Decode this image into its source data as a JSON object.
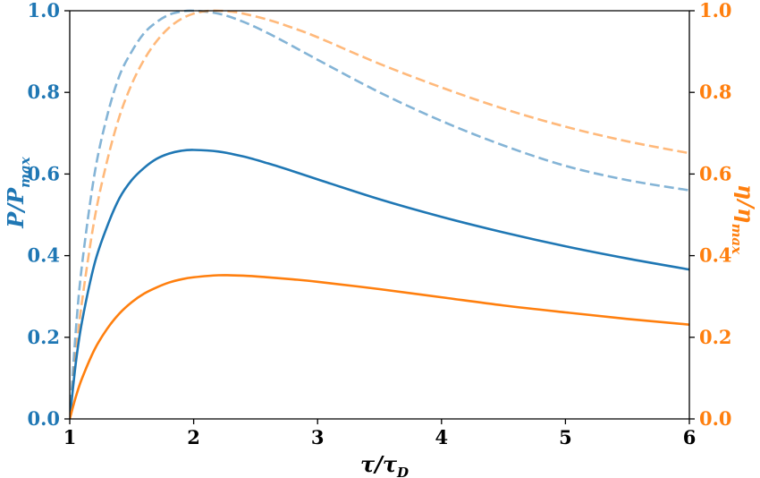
{
  "chart_data": {
    "type": "line",
    "xlabel": {
      "main": "τ/τ",
      "sub": "D"
    },
    "ylabel_left": {
      "main": "P/P",
      "sub": "max"
    },
    "ylabel_right": {
      "main": "η/η",
      "sub": "max"
    },
    "xlim": [
      1,
      6
    ],
    "ylim_left": [
      0,
      1.0
    ],
    "ylim_right": [
      0,
      1.0
    ],
    "x_ticks": [
      "1",
      "2",
      "3",
      "4",
      "5",
      "6"
    ],
    "y_ticks_left": [
      "0.0",
      "0.2",
      "0.4",
      "0.6",
      "0.8",
      "1.0"
    ],
    "y_ticks_right": [
      "0.0",
      "0.2",
      "0.4",
      "0.6",
      "0.8",
      "1.0"
    ],
    "grid": false,
    "colors": {
      "blue": "#1f77b4",
      "orange": "#ff7f0e",
      "axis": "#000000"
    },
    "series": [
      {
        "axis": "left",
        "color": "#1f77b4",
        "style": "solid",
        "opacity": 1.0,
        "x": [
          1.0,
          1.05,
          1.1,
          1.2,
          1.3,
          1.4,
          1.5,
          1.6,
          1.7,
          1.8,
          1.9,
          2.0,
          2.2,
          2.4,
          2.6,
          2.8,
          3.0,
          3.5,
          4.0,
          4.5,
          5.0,
          5.5,
          6.0
        ],
        "y": [
          0.0,
          0.14,
          0.24,
          0.38,
          0.47,
          0.54,
          0.585,
          0.615,
          0.637,
          0.65,
          0.657,
          0.659,
          0.655,
          0.643,
          0.626,
          0.607,
          0.587,
          0.538,
          0.495,
          0.457,
          0.423,
          0.393,
          0.366
        ]
      },
      {
        "axis": "right",
        "color": "#ff7f0e",
        "style": "solid",
        "opacity": 1.0,
        "x": [
          1.0,
          1.05,
          1.1,
          1.2,
          1.3,
          1.4,
          1.5,
          1.6,
          1.7,
          1.8,
          1.9,
          2.0,
          2.2,
          2.4,
          2.6,
          2.8,
          3.0,
          3.5,
          4.0,
          4.5,
          5.0,
          5.5,
          6.0
        ],
        "y": [
          0.0,
          0.055,
          0.1,
          0.17,
          0.22,
          0.258,
          0.286,
          0.307,
          0.322,
          0.334,
          0.342,
          0.347,
          0.352,
          0.351,
          0.347,
          0.342,
          0.336,
          0.318,
          0.298,
          0.278,
          0.261,
          0.245,
          0.231
        ]
      },
      {
        "axis": "left",
        "color": "#1f77b4",
        "style": "dashed",
        "opacity": 0.55,
        "x": [
          1.0,
          1.05,
          1.1,
          1.2,
          1.3,
          1.4,
          1.5,
          1.6,
          1.7,
          1.8,
          1.9,
          2.0,
          2.2,
          2.4,
          2.6,
          2.8,
          3.0,
          3.5,
          4.0,
          4.5,
          5.0,
          5.5,
          6.0
        ],
        "y": [
          0.0,
          0.22,
          0.38,
          0.6,
          0.74,
          0.84,
          0.9,
          0.945,
          0.972,
          0.99,
          0.998,
          1.0,
          0.993,
          0.973,
          0.945,
          0.913,
          0.88,
          0.8,
          0.73,
          0.67,
          0.62,
          0.585,
          0.56
        ]
      },
      {
        "axis": "right",
        "color": "#ff7f0e",
        "style": "dashed",
        "opacity": 0.55,
        "x": [
          1.0,
          1.05,
          1.1,
          1.2,
          1.3,
          1.4,
          1.5,
          1.6,
          1.7,
          1.8,
          1.9,
          2.0,
          2.1,
          2.2,
          2.3,
          2.4,
          2.6,
          2.8,
          3.0,
          3.5,
          4.0,
          4.5,
          5.0,
          5.5,
          6.0
        ],
        "y": [
          0.0,
          0.16,
          0.29,
          0.49,
          0.63,
          0.74,
          0.82,
          0.88,
          0.925,
          0.958,
          0.98,
          0.993,
          0.999,
          1.0,
          0.998,
          0.993,
          0.978,
          0.958,
          0.935,
          0.87,
          0.812,
          0.76,
          0.716,
          0.68,
          0.651
        ]
      }
    ]
  }
}
